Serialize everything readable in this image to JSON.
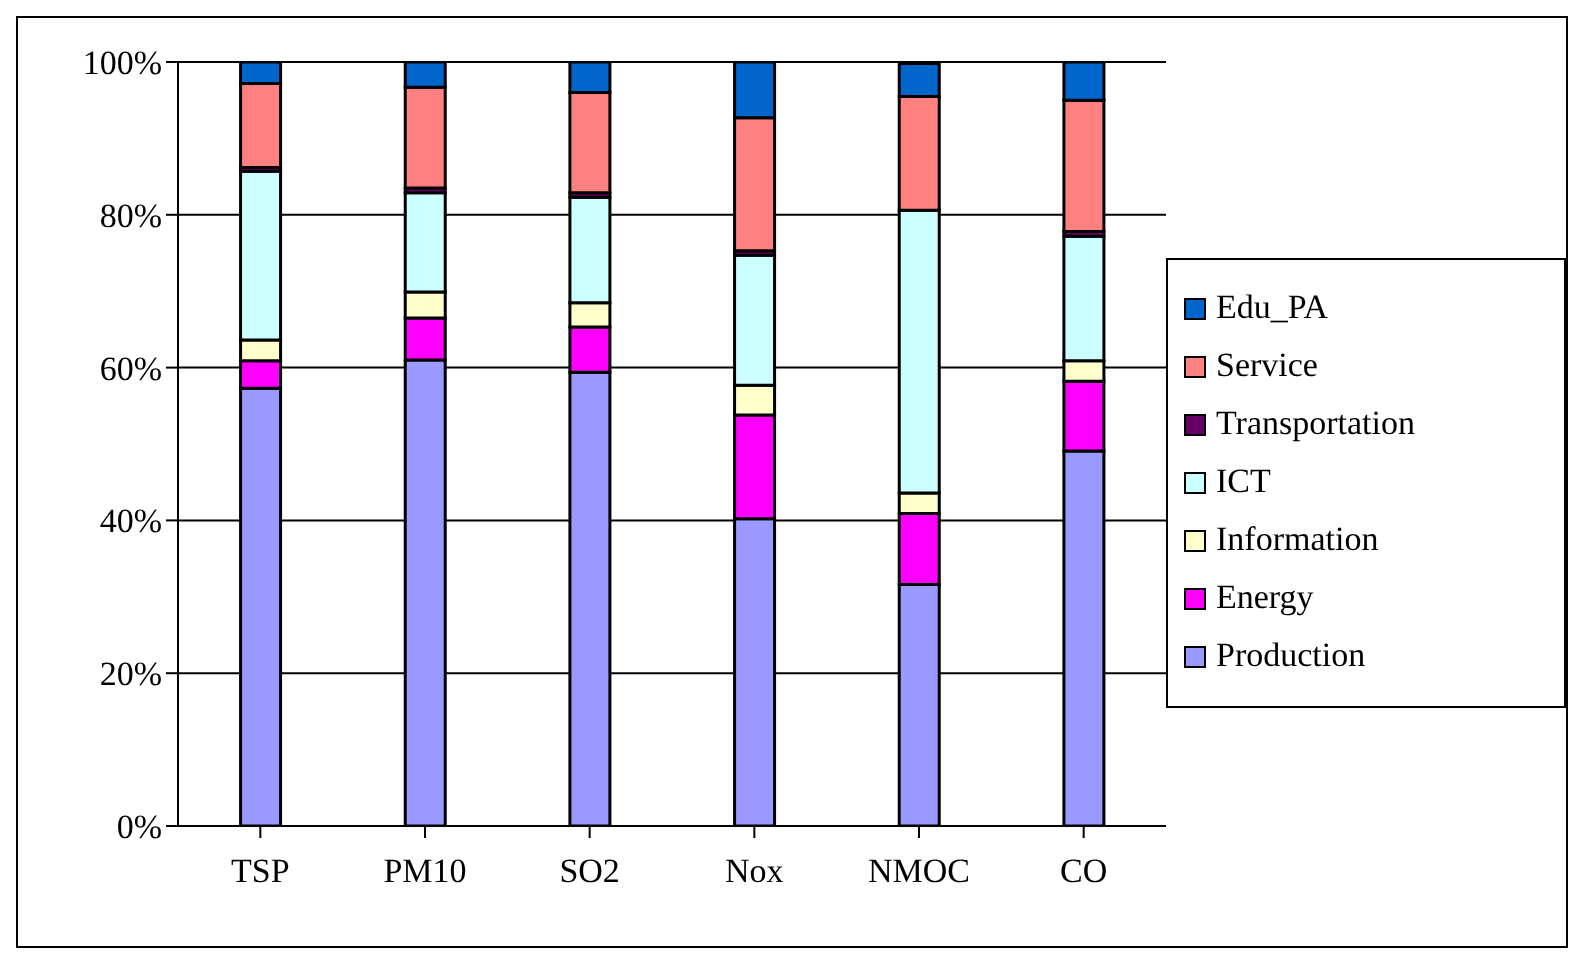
{
  "chart_data": {
    "type": "bar",
    "stacked": true,
    "categories": [
      "TSP",
      "PM10",
      "SO2",
      "Nox",
      "NMOC",
      "CO"
    ],
    "series": [
      {
        "name": "Production",
        "color": "#9999ff",
        "values": [
          57.3,
          61,
          59.4,
          40.2,
          31.6,
          49.1
        ]
      },
      {
        "name": "Energy",
        "color": "#ff00ff",
        "values": [
          3.6,
          5.5,
          5.9,
          13.6,
          9.3,
          9.1
        ]
      },
      {
        "name": "Information",
        "color": "#ffffcc",
        "values": [
          2.7,
          3.4,
          3.2,
          3.9,
          2.7,
          2.7
        ]
      },
      {
        "name": "ICT",
        "color": "#ccffff",
        "values": [
          22.1,
          13,
          13.8,
          17,
          37,
          16.3
        ]
      },
      {
        "name": "Transportation",
        "color": "#660066",
        "values": [
          0.5,
          0.6,
          0.6,
          0.6,
          null,
          0.6
        ]
      },
      {
        "name": "Service",
        "color": "#ff8080",
        "values": [
          11,
          13.2,
          13.1,
          17.4,
          14.9,
          17.2
        ]
      },
      {
        "name": "Edu_PA",
        "color": "#0066cc",
        "values": [
          2.8,
          3.3,
          4,
          7.3,
          4.3,
          5
        ]
      }
    ],
    "ylim": [
      0,
      100
    ],
    "yticks": [
      {
        "value": 0,
        "label": "0%"
      },
      {
        "value": 20,
        "label": "20%"
      },
      {
        "value": 40,
        "label": "40%"
      },
      {
        "value": 60,
        "label": "60%"
      },
      {
        "value": 80,
        "label": "80%"
      },
      {
        "value": 100,
        "label": "100%"
      }
    ],
    "grid": "y",
    "legend": "right"
  }
}
